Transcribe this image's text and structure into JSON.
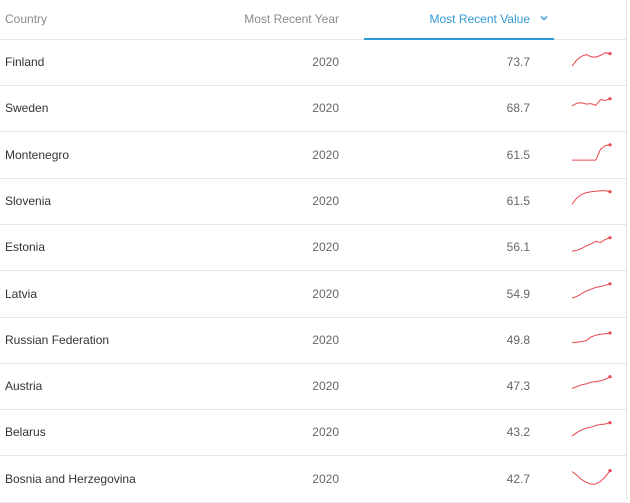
{
  "header": {
    "country": "Country",
    "year": "Most Recent Year",
    "value": "Most Recent Value",
    "sort_icon": "chevron-down-icon"
  },
  "colors": {
    "accent": "#2f9ad6",
    "sparkline": "#e8474c",
    "border": "#e6e6e6"
  },
  "rows": [
    {
      "country": "Finland",
      "year": "2020",
      "value": "73.7",
      "trend": [
        0.1,
        0.45,
        0.65,
        0.75,
        0.62,
        0.6,
        0.7,
        0.85,
        0.8
      ]
    },
    {
      "country": "Sweden",
      "year": "2020",
      "value": "68.7",
      "trend": [
        0.45,
        0.6,
        0.62,
        0.55,
        0.58,
        0.48,
        0.8,
        0.75,
        0.85
      ]
    },
    {
      "country": "Montenegro",
      "year": "2020",
      "value": "61.5",
      "trend": [
        0.05,
        0.05,
        0.05,
        0.05,
        0.05,
        0.05,
        0.65,
        0.85,
        0.9
      ]
    },
    {
      "country": "Slovenia",
      "year": "2020",
      "value": "61.5",
      "trend": [
        0.15,
        0.5,
        0.7,
        0.8,
        0.85,
        0.88,
        0.9,
        0.9,
        0.85
      ]
    },
    {
      "country": "Estonia",
      "year": "2020",
      "value": "56.1",
      "trend": [
        0.1,
        0.15,
        0.25,
        0.4,
        0.5,
        0.65,
        0.58,
        0.75,
        0.85
      ]
    },
    {
      "country": "Latvia",
      "year": "2020",
      "value": "54.9",
      "trend": [
        0.1,
        0.2,
        0.35,
        0.5,
        0.6,
        0.7,
        0.75,
        0.82,
        0.9
      ]
    },
    {
      "country": "Russian Federation",
      "year": "2020",
      "value": "49.8",
      "trend": [
        0.2,
        0.2,
        0.25,
        0.3,
        0.5,
        0.6,
        0.65,
        0.68,
        0.72
      ]
    },
    {
      "country": "Austria",
      "year": "2020",
      "value": "47.3",
      "trend": [
        0.2,
        0.3,
        0.4,
        0.45,
        0.55,
        0.58,
        0.62,
        0.7,
        0.85
      ]
    },
    {
      "country": "Belarus",
      "year": "2020",
      "value": "43.2",
      "trend": [
        0.1,
        0.3,
        0.45,
        0.55,
        0.6,
        0.7,
        0.75,
        0.78,
        0.85
      ]
    },
    {
      "country": "Bosnia and Herzegovina",
      "year": "2020",
      "value": "42.7",
      "trend": [
        0.75,
        0.55,
        0.3,
        0.15,
        0.05,
        0.05,
        0.2,
        0.45,
        0.8
      ]
    }
  ]
}
